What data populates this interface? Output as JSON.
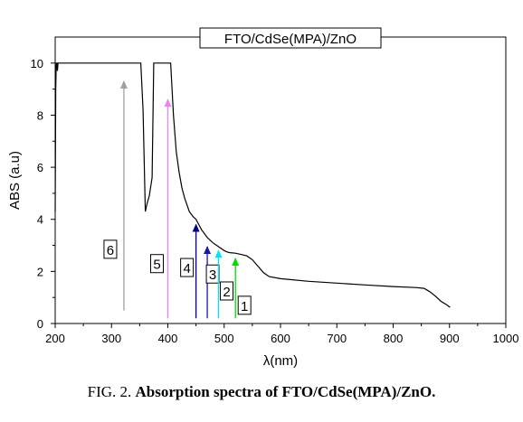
{
  "caption": {
    "prefix": "FIG. 2.",
    "bold": "Absorption spectra of FTO/CdSe(MPA)/ZnO."
  },
  "chart_data": {
    "type": "line",
    "title": "FTO/CdSe(MPA)/ZnO",
    "xlabel": "λ(nm)",
    "ylabel": "ABS (a.u)",
    "xlim": [
      200,
      1000
    ],
    "ylim": [
      0,
      11
    ],
    "xticks": [
      200,
      300,
      400,
      500,
      600,
      700,
      800,
      900,
      1000
    ],
    "yticks": [
      0,
      2,
      4,
      6,
      8,
      10
    ],
    "grid": false,
    "series": [
      {
        "x": [
          200,
          201,
          202,
          203,
          204,
          205,
          210,
          230,
          260,
          300,
          330,
          352,
          356,
          360,
          363,
          367,
          372,
          375,
          380,
          390,
          400,
          405,
          410,
          415,
          420,
          425,
          430,
          438,
          445,
          450,
          455,
          460,
          470,
          480,
          490,
          500,
          505,
          510,
          520,
          530,
          540,
          550,
          560,
          570,
          580,
          600,
          650,
          700,
          750,
          800,
          840,
          855,
          865,
          875,
          885,
          895,
          901
        ],
        "y": [
          4.3,
          9.0,
          10.0,
          10.0,
          9.7,
          10.0,
          10.0,
          10.0,
          10.0,
          10.0,
          10.0,
          10.0,
          8.2,
          4.3,
          4.6,
          4.9,
          5.6,
          10.0,
          10.0,
          10.0,
          10.0,
          10.0,
          8.0,
          6.6,
          5.8,
          5.2,
          4.8,
          4.3,
          4.1,
          4.0,
          3.8,
          3.6,
          3.3,
          3.1,
          2.95,
          2.8,
          2.75,
          2.72,
          2.7,
          2.65,
          2.6,
          2.45,
          2.2,
          1.95,
          1.8,
          1.72,
          1.62,
          1.55,
          1.48,
          1.42,
          1.38,
          1.35,
          1.22,
          1.05,
          0.85,
          0.72,
          0.62
        ]
      }
    ],
    "annotations": [
      {
        "label": "6",
        "x": 322,
        "y_from": 0.5,
        "y_to": 9.3,
        "color": "#a0a0a0"
      },
      {
        "label": "5",
        "x": 400,
        "y_from": 0.2,
        "y_to": 8.6,
        "color": "#ee82ee"
      },
      {
        "label": "4",
        "x": 450,
        "y_from": 0.2,
        "y_to": 3.8,
        "color": "#000080"
      },
      {
        "label": "3",
        "x": 470,
        "y_from": 0.2,
        "y_to": 2.95,
        "color": "#1a1aa0"
      },
      {
        "label": "2",
        "x": 490,
        "y_from": 0.2,
        "y_to": 2.8,
        "color": "#00e5ee"
      },
      {
        "label": "1",
        "x": 520,
        "y_from": 0.2,
        "y_to": 2.5,
        "color": "#00dd00"
      }
    ]
  }
}
